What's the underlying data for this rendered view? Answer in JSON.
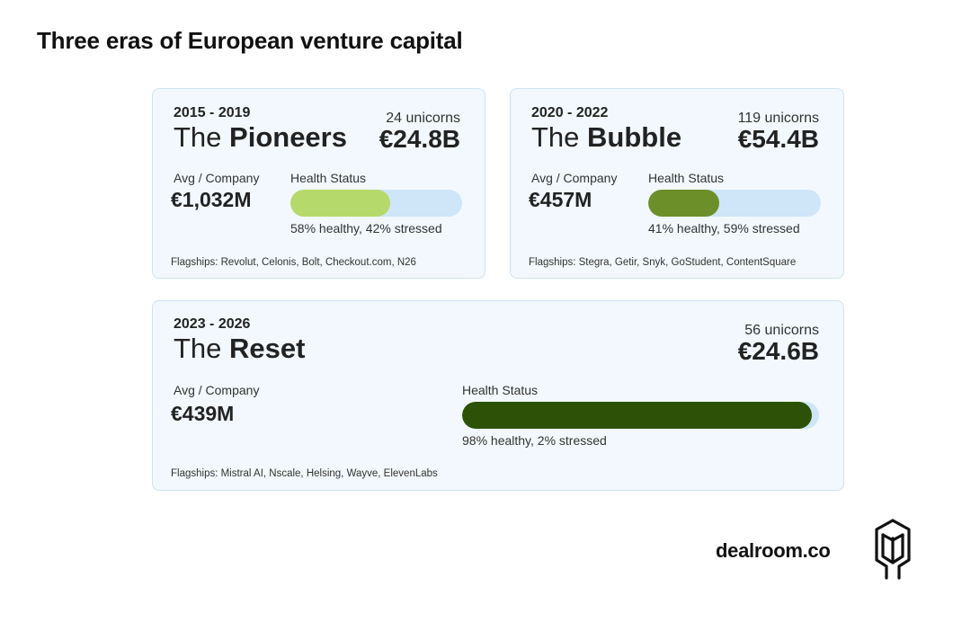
{
  "title": "Three eras of European venture capital",
  "eras": [
    {
      "years": "2015 - 2019",
      "name_prefix": "The ",
      "name_bold": "Pioneers",
      "unicorns": "24 unicorns",
      "total": "€24.8B",
      "avg_label": "Avg / Company",
      "avg_value": "€1,032M",
      "health_label": "Health Status",
      "healthy_fraction": 0.58,
      "health_text": "58% healthy, 42% stressed",
      "bar_color": "#b6d96b",
      "flagships": "Flagships: Revolut, Celonis, Bolt, Checkout.com, N26"
    },
    {
      "years": "2020 - 2022",
      "name_prefix": "The ",
      "name_bold": "Bubble",
      "unicorns": "119 unicorns",
      "total": "€54.4B",
      "avg_label": "Avg / Company",
      "avg_value": "€457M",
      "health_label": "Health Status",
      "healthy_fraction": 0.41,
      "health_text": "41% healthy, 59% stressed",
      "bar_color": "#6d8f2a",
      "flagships": "Flagships: Stegra, Getir, Snyk, GoStudent, ContentSquare"
    },
    {
      "years": "2023 - 2026",
      "name_prefix": "The ",
      "name_bold": "Reset",
      "unicorns": "56 unicorns",
      "total": "€24.6B",
      "avg_label": "Avg / Company",
      "avg_value": "€439M",
      "health_label": "Health Status",
      "healthy_fraction": 0.98,
      "health_text": "98% healthy, 2% stressed",
      "bar_color": "#2d5207",
      "flagships": "Flagships: Mistral AI, Nscale, Helsing, Wayve, ElevenLabs"
    }
  ],
  "brand": {
    "text": "dealroom.co",
    "logo_icon": "dealroom-logo-icon"
  }
}
